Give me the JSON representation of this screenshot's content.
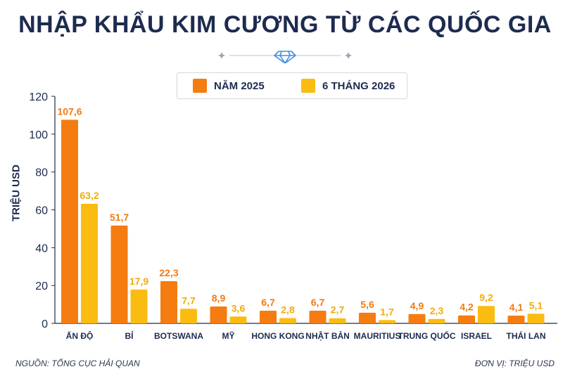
{
  "title": "NHẬP KHẨU KIM CƯƠNG TỪ CÁC QUỐC GIA",
  "icons": {
    "divider": "diamond-icon",
    "sparkle": "sparkle-icon"
  },
  "legend": [
    {
      "label": "NĂM 2025",
      "color": "#f57c10"
    },
    {
      "label": "6 THÁNG 2026",
      "color": "#fbbc12"
    }
  ],
  "footer": {
    "source": "NGUỒN: TỔNG CỤC HẢI QUAN",
    "unit": "ĐƠN VỊ: TRIỆU USD"
  },
  "chart_data": {
    "type": "bar",
    "ylabel": "TRIỆU USD",
    "ylim": [
      0,
      120
    ],
    "yticks": [
      0,
      20,
      40,
      60,
      80,
      100,
      120
    ],
    "grid": false,
    "legend_position": "top",
    "categories": [
      "ẤN ĐỘ",
      "BỈ",
      "BOTSWANA",
      "MỸ",
      "HONG KONG",
      "NHẬT BẢN",
      "MAURITIUS",
      "TRUNG QUỐC",
      "ISRAEL",
      "THÁI LAN"
    ],
    "series": [
      {
        "name": "NĂM 2025",
        "color": "#f57c10",
        "label_color": "#f07a12",
        "values": [
          107.6,
          51.7,
          22.3,
          8.9,
          6.7,
          6.7,
          5.6,
          4.9,
          4.2,
          4.1
        ],
        "labels": [
          "107,6",
          "51,7",
          "22,3",
          "8,9",
          "6,7",
          "6,7",
          "5,6",
          "4,9",
          "4,2",
          "4,1"
        ]
      },
      {
        "name": "6 THÁNG 2026",
        "color": "#fbbc12",
        "label_color": "#f2ac08",
        "values": [
          63.2,
          17.9,
          7.7,
          3.6,
          2.8,
          2.7,
          1.7,
          2.3,
          9.2,
          5.1
        ],
        "labels": [
          "63,2",
          "17,9",
          "7,7",
          "3,6",
          "2,8",
          "2,7",
          "1,7",
          "2,3",
          "9,2",
          "5,1"
        ]
      }
    ]
  }
}
